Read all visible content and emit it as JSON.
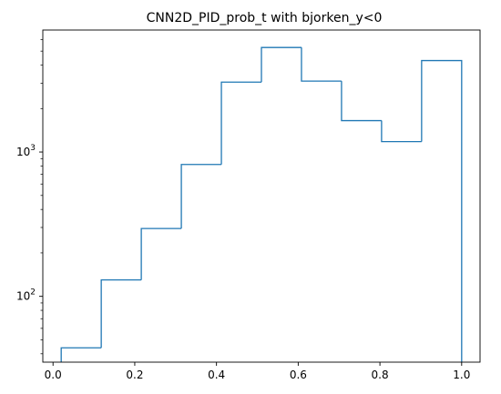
{
  "chart_data": {
    "type": "histogram",
    "title": "CNN2D_PID_prob_t with bjorken_y<0",
    "xlabel": "",
    "ylabel": "",
    "xlim": [
      -0.025,
      1.045
    ],
    "ylim": [
      35,
      7000
    ],
    "yscale": "log",
    "grid": false,
    "style": "step",
    "color": "#1f77b4",
    "bin_edges": [
      0.02,
      0.118,
      0.216,
      0.314,
      0.412,
      0.51,
      0.608,
      0.706,
      0.804,
      0.902,
      1.0
    ],
    "counts": [
      44,
      130,
      295,
      820,
      3050,
      5300,
      3100,
      1650,
      1180,
      4300
    ],
    "x_ticks": [
      {
        "value": 0.0,
        "label": "0.0"
      },
      {
        "value": 0.2,
        "label": "0.2"
      },
      {
        "value": 0.4,
        "label": "0.4"
      },
      {
        "value": 0.6,
        "label": "0.6"
      },
      {
        "value": 0.8,
        "label": "0.8"
      },
      {
        "value": 1.0,
        "label": "1.0"
      }
    ],
    "y_major_ticks": [
      {
        "value": 100,
        "base": "10",
        "exp": "2"
      },
      {
        "value": 1000,
        "base": "10",
        "exp": "3"
      }
    ],
    "y_minor_ticks": [
      40,
      50,
      60,
      70,
      80,
      90,
      200,
      300,
      400,
      500,
      600,
      700,
      800,
      900,
      2000,
      3000,
      4000,
      5000,
      6000
    ]
  }
}
